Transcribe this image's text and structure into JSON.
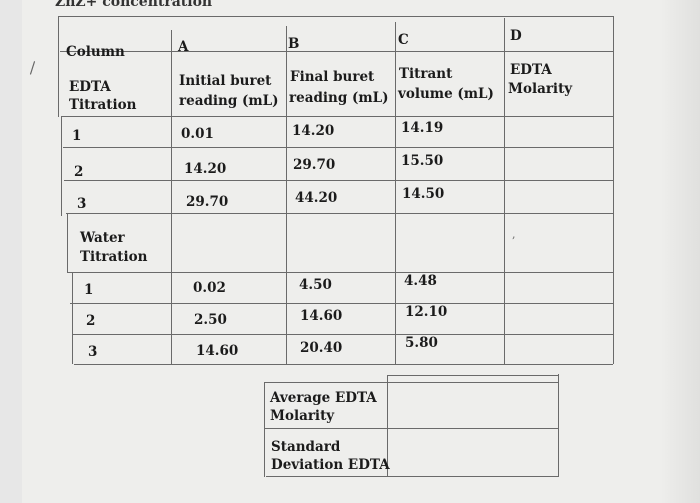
{
  "top_text": "ZnZ+ concentration",
  "table": {
    "header_row": {
      "column_label": "Column",
      "a": "A",
      "b": "B",
      "c": "C",
      "d": "D"
    },
    "title_row": {
      "section": [
        "EDTA",
        "Titration"
      ],
      "a": [
        "Initial buret",
        "reading (mL)"
      ],
      "b": [
        "Final buret",
        "reading (mL)"
      ],
      "c": [
        "Titrant",
        "volume (mL)"
      ],
      "d": [
        "EDTA",
        "Molarity"
      ]
    },
    "edta_rows": [
      {
        "n": "1",
        "a": "0.01",
        "b": "14.20",
        "c": "14.19",
        "d": ""
      },
      {
        "n": "2",
        "a": "14.20",
        "b": "29.70",
        "c": "15.50",
        "d": ""
      },
      {
        "n": "3",
        "a": "29.70",
        "b": "44.20",
        "c": "14.50",
        "d": ""
      }
    ],
    "water_section": [
      "Water",
      "Titration"
    ],
    "water_rows": [
      {
        "n": "1",
        "a": "0.02",
        "b": "4.50",
        "c": "4.48",
        "d": ""
      },
      {
        "n": "2",
        "a": "2.50",
        "b": "14.60",
        "c": "12.10",
        "d": ""
      },
      {
        "n": "3",
        "a": "14.60",
        "b": "20.40",
        "c": "5.80",
        "d": ""
      }
    ]
  },
  "summary": {
    "average_label": [
      "Average EDTA",
      "Molarity"
    ],
    "average_value": "",
    "stdev_label": [
      "Standard",
      "Deviation EDTA"
    ],
    "stdev_value": ""
  }
}
